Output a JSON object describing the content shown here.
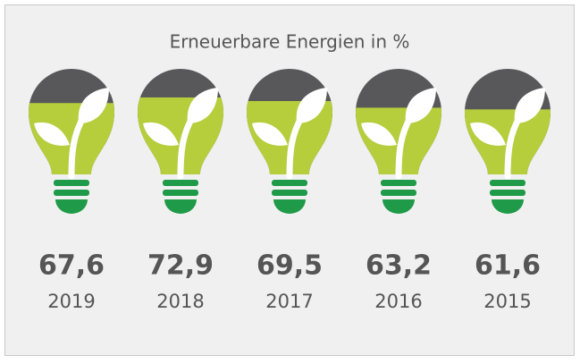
{
  "chart_data": {
    "type": "bulb",
    "title": "Erneuerbare Energien in %",
    "categories": [
      "2019",
      "2018",
      "2017",
      "2016",
      "2015"
    ],
    "values": [
      67.6,
      72.9,
      69.5,
      63.2,
      61.6
    ],
    "value_labels": [
      "67,6",
      "72,9",
      "69,5",
      "63,2",
      "61,6"
    ],
    "color": "#b6cd3c",
    "empty_color": "#58585a",
    "base_color": "#1f9a48"
  }
}
